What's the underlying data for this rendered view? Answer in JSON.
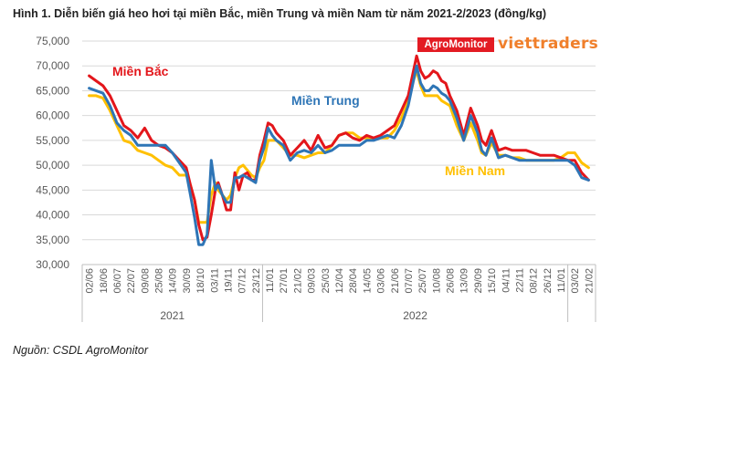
{
  "figure": {
    "title": "Hình 1. Diễn biến giá heo hơi tại miền Bắc, miền Trung và miền Nam từ năm 2021-2/2023 (đồng/kg)",
    "source": "Nguồn: CSDL AgroMonitor",
    "logo_agro": "AgroMonitor",
    "logo_viet": "viettraders"
  },
  "chart_data": {
    "type": "line",
    "title": "Hình 1. Diễn biến giá heo hơi tại miền Bắc, miền Trung và miền Nam từ năm 2021-2/2023 (đồng/kg)",
    "xlabel": "",
    "ylabel": "",
    "ylim": [
      30000,
      75000
    ],
    "yticks": [
      30000,
      35000,
      40000,
      45000,
      50000,
      55000,
      60000,
      65000,
      70000,
      75000
    ],
    "ytick_labels": [
      "30,000",
      "35,000",
      "40,000",
      "45,000",
      "50,000",
      "55,000",
      "60,000",
      "65,000",
      "70,000",
      "75,000"
    ],
    "x_tick_labels": [
      "02/06",
      "18/06",
      "06/07",
      "22/07",
      "09/08",
      "25/08",
      "14/09",
      "30/09",
      "18/10",
      "03/11",
      "19/11",
      "07/12",
      "23/12",
      "11/01",
      "27/01",
      "21/02",
      "09/03",
      "25/03",
      "12/04",
      "28/04",
      "14/05",
      "03/06",
      "21/06",
      "07/07",
      "25/07",
      "10/08",
      "26/08",
      "13/09",
      "29/09",
      "15/10",
      "04/11",
      "22/11",
      "08/12",
      "26/12",
      "11/01",
      "03/02",
      "21/02"
    ],
    "year_groups": [
      {
        "label": "2021",
        "from": 0,
        "to": 12
      },
      {
        "label": "2022",
        "from": 13,
        "to": 34
      }
    ],
    "grid": "horizontal",
    "legend": "inline labels",
    "series": [
      {
        "name": "Miền Bắc",
        "color": "#e3161b",
        "x": [
          0,
          0.5,
          1,
          1.5,
          2,
          2.5,
          3,
          3.5,
          4,
          4.5,
          5,
          5.5,
          6,
          6.5,
          7,
          7.3,
          7.6,
          7.9,
          8.2,
          8.5,
          8.8,
          9.1,
          9.3,
          9.6,
          9.9,
          10.2,
          10.5,
          10.8,
          11.1,
          11.4,
          11.7,
          12,
          12.3,
          12.6,
          12.9,
          13.2,
          13.5,
          14,
          14.5,
          15,
          15.5,
          16,
          16.5,
          17,
          17.5,
          18,
          18.5,
          19,
          19.5,
          20,
          20.5,
          21,
          21.5,
          22,
          22.5,
          23,
          23.3,
          23.6,
          23.9,
          24.2,
          24.5,
          24.8,
          25.1,
          25.4,
          25.7,
          26,
          26.5,
          27,
          27.5,
          28,
          28.3,
          28.6,
          29,
          29.5,
          30,
          30.5,
          31,
          31.5,
          32,
          32.5,
          33,
          33.5,
          34,
          34.5,
          35,
          35.5,
          36
        ],
        "values": [
          68000,
          67000,
          66000,
          64000,
          61000,
          58000,
          57000,
          55500,
          57500,
          55000,
          54000,
          53500,
          52500,
          51000,
          49500,
          46000,
          43000,
          38000,
          35000,
          35500,
          40000,
          45000,
          46500,
          44000,
          41000,
          41000,
          48500,
          45000,
          48000,
          48500,
          47000,
          47000,
          52000,
          55000,
          58500,
          58000,
          56500,
          55000,
          52000,
          53500,
          55000,
          53000,
          56000,
          53500,
          54000,
          56000,
          56500,
          55500,
          55000,
          56000,
          55500,
          56000,
          57000,
          58000,
          61000,
          64000,
          68000,
          72000,
          69000,
          67500,
          68000,
          69000,
          68500,
          67000,
          66500,
          64000,
          61000,
          56000,
          61500,
          58000,
          55000,
          54000,
          57000,
          53000,
          53500,
          53000,
          53000,
          53000,
          52500,
          52000,
          52000,
          52000,
          51500,
          51000,
          51000,
          48500,
          47000
        ]
      },
      {
        "name": "Miền Trung",
        "color": "#2e75b6",
        "x": [
          0,
          0.5,
          1,
          1.5,
          2,
          2.5,
          3,
          3.5,
          4,
          4.5,
          5,
          5.5,
          6,
          6.5,
          7,
          7.3,
          7.6,
          7.9,
          8.2,
          8.5,
          8.8,
          9.1,
          9.3,
          9.6,
          9.9,
          10.2,
          10.5,
          10.8,
          11.1,
          11.4,
          11.7,
          12,
          12.3,
          12.6,
          12.9,
          13.2,
          13.5,
          14,
          14.5,
          15,
          15.5,
          16,
          16.5,
          17,
          17.5,
          18,
          18.5,
          19,
          19.5,
          20,
          20.5,
          21,
          21.5,
          22,
          22.5,
          23,
          23.3,
          23.6,
          23.9,
          24.2,
          24.5,
          24.8,
          25.1,
          25.4,
          25.7,
          26,
          26.5,
          27,
          27.5,
          28,
          28.3,
          28.6,
          29,
          29.5,
          30,
          30.5,
          31,
          31.5,
          32,
          32.5,
          33,
          33.5,
          34,
          34.5,
          35,
          35.5,
          36
        ],
        "values": [
          65500,
          65000,
          64500,
          62000,
          58500,
          57000,
          56000,
          54000,
          54000,
          54000,
          54000,
          54000,
          52500,
          50500,
          48500,
          44000,
          39500,
          34000,
          34000,
          36000,
          51000,
          45000,
          46000,
          44000,
          42500,
          42500,
          47500,
          47500,
          48000,
          47500,
          47000,
          46500,
          51000,
          53500,
          57500,
          56000,
          55000,
          54000,
          51000,
          52500,
          53000,
          52500,
          54000,
          52500,
          53000,
          54000,
          54000,
          54000,
          54000,
          55000,
          55000,
          55500,
          56000,
          55500,
          58000,
          62000,
          66000,
          70000,
          66500,
          65000,
          65000,
          66000,
          65500,
          64500,
          64000,
          63000,
          59500,
          55000,
          60000,
          56500,
          53000,
          52000,
          55500,
          51500,
          52000,
          51500,
          51000,
          51000,
          51000,
          51000,
          51000,
          51000,
          51000,
          51000,
          50000,
          47500,
          47000
        ]
      },
      {
        "name": "Miền Nam",
        "color": "#ffc000",
        "x": [
          0,
          0.5,
          1,
          1.5,
          2,
          2.5,
          3,
          3.5,
          4,
          4.5,
          5,
          5.5,
          6,
          6.5,
          7,
          7.3,
          7.6,
          7.9,
          8.2,
          8.5,
          8.8,
          9.1,
          9.3,
          9.6,
          9.9,
          10.2,
          10.5,
          10.8,
          11.1,
          11.4,
          11.7,
          12,
          12.3,
          12.6,
          12.9,
          13.2,
          13.5,
          14,
          14.5,
          15,
          15.5,
          16,
          16.5,
          17,
          17.5,
          18,
          18.5,
          19,
          19.5,
          20,
          20.5,
          21,
          21.5,
          22,
          22.5,
          23,
          23.3,
          23.6,
          23.9,
          24.2,
          24.5,
          24.8,
          25.1,
          25.4,
          25.7,
          26,
          26.5,
          27,
          27.5,
          28,
          28.3,
          28.6,
          29,
          29.5,
          30,
          30.5,
          31,
          31.5,
          32,
          32.5,
          33,
          33.5,
          34,
          34.5,
          35,
          35.5,
          36
        ],
        "values": [
          64000,
          64000,
          63500,
          61000,
          58000,
          55000,
          54500,
          53000,
          52500,
          52000,
          51000,
          50000,
          49500,
          48000,
          48000,
          46000,
          43000,
          38500,
          38500,
          38500,
          44000,
          46500,
          45000,
          44000,
          43000,
          44000,
          47500,
          49500,
          50000,
          49000,
          48000,
          47500,
          49500,
          51000,
          55000,
          55000,
          55000,
          53500,
          52000,
          52000,
          51500,
          52000,
          52500,
          52500,
          54000,
          56000,
          56500,
          56500,
          55500,
          55500,
          55500,
          55500,
          55500,
          57000,
          59500,
          63000,
          66500,
          69000,
          66000,
          64000,
          64000,
          64000,
          64000,
          63000,
          62500,
          62000,
          58000,
          55000,
          58500,
          55000,
          52500,
          52000,
          54500,
          52000,
          52000,
          51500,
          51500,
          51000,
          51000,
          51000,
          51000,
          51000,
          51500,
          52500,
          52500,
          50500,
          49500
        ]
      }
    ],
    "annotations": [
      {
        "text": "Miền Bắc",
        "color": "#e3161b"
      },
      {
        "text": "Miền Trung",
        "color": "#2e75b6"
      },
      {
        "text": "Miền Nam",
        "color": "#ffc000"
      }
    ]
  }
}
